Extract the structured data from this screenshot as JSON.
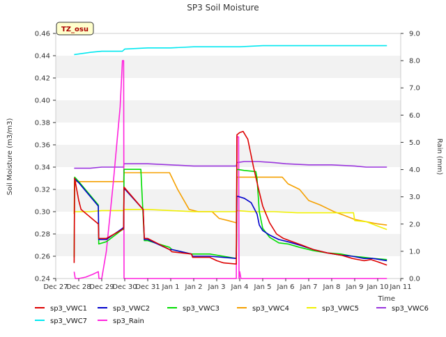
{
  "chart_data": {
    "type": "line",
    "title": "SP3 Soil Moisture",
    "xlabel": "Time",
    "ylabel": "Soil Moisture (m3/m3)",
    "y2label": "Rain (mm)",
    "badge": "TZ_osu",
    "xlim": [
      0,
      15
    ],
    "ylim": [
      0.24,
      0.46
    ],
    "y2lim": [
      0.0,
      9.0
    ],
    "grid": "horizontal bands",
    "legend_position": "bottom",
    "x_ticks": [
      {
        "v": 0,
        "label": "Dec 27"
      },
      {
        "v": 1,
        "label": "Dec 28"
      },
      {
        "v": 2,
        "label": "Dec 29"
      },
      {
        "v": 3,
        "label": "Dec 30"
      },
      {
        "v": 4,
        "label": "Dec 31"
      },
      {
        "v": 5,
        "label": "Jan 1"
      },
      {
        "v": 6,
        "label": "Jan 2"
      },
      {
        "v": 7,
        "label": "Jan 3"
      },
      {
        "v": 8,
        "label": "Jan 4"
      },
      {
        "v": 9,
        "label": "Jan 5"
      },
      {
        "v": 10,
        "label": "Jan 6"
      },
      {
        "v": 11,
        "label": "Jan 7"
      },
      {
        "v": 12,
        "label": "Jan 8"
      },
      {
        "v": 13,
        "label": "Jan 9"
      },
      {
        "v": 14,
        "label": "Jan 10"
      },
      {
        "v": 15,
        "label": "Jan 11"
      }
    ],
    "y_ticks": [
      {
        "v": 0.24,
        "label": "0.24"
      },
      {
        "v": 0.26,
        "label": "0.26"
      },
      {
        "v": 0.28,
        "label": "0.28"
      },
      {
        "v": 0.3,
        "label": "0.30"
      },
      {
        "v": 0.32,
        "label": "0.32"
      },
      {
        "v": 0.34,
        "label": "0.34"
      },
      {
        "v": 0.36,
        "label": "0.36"
      },
      {
        "v": 0.38,
        "label": "0.38"
      },
      {
        "v": 0.4,
        "label": "0.40"
      },
      {
        "v": 0.42,
        "label": "0.42"
      },
      {
        "v": 0.44,
        "label": "0.44"
      },
      {
        "v": 0.46,
        "label": "0.46"
      }
    ],
    "y2_ticks": [
      {
        "v": 0,
        "label": "0.0"
      },
      {
        "v": 1,
        "label": "1.0"
      },
      {
        "v": 2,
        "label": "2.0"
      },
      {
        "v": 3,
        "label": "3.0"
      },
      {
        "v": 4,
        "label": "4.0"
      },
      {
        "v": 5,
        "label": "5.0"
      },
      {
        "v": 6,
        "label": "6.0"
      },
      {
        "v": 7,
        "label": "7.0"
      },
      {
        "v": 8,
        "label": "8.0"
      },
      {
        "v": 9,
        "label": "9.0"
      }
    ],
    "series": [
      {
        "name": "sp3_VWC1",
        "color": "#dd0000",
        "axis": "left",
        "points": [
          [
            0.8,
            0.254
          ],
          [
            0.82,
            0.33
          ],
          [
            1.0,
            0.31
          ],
          [
            1.1,
            0.302
          ],
          [
            1.85,
            0.289
          ],
          [
            1.87,
            0.276
          ],
          [
            2.2,
            0.276
          ],
          [
            2.9,
            0.284
          ],
          [
            2.95,
            0.285
          ],
          [
            2.97,
            0.322
          ],
          [
            3.8,
            0.302
          ],
          [
            3.85,
            0.276
          ],
          [
            4.0,
            0.276
          ],
          [
            4.95,
            0.266
          ],
          [
            5.05,
            0.264
          ],
          [
            5.9,
            0.262
          ],
          [
            5.95,
            0.259
          ],
          [
            6.7,
            0.259
          ],
          [
            7.0,
            0.256
          ],
          [
            7.3,
            0.254
          ],
          [
            7.85,
            0.253
          ],
          [
            7.88,
            0.369
          ],
          [
            8.0,
            0.371
          ],
          [
            8.15,
            0.372
          ],
          [
            8.35,
            0.365
          ],
          [
            8.6,
            0.34
          ],
          [
            8.8,
            0.322
          ],
          [
            9.0,
            0.305
          ],
          [
            9.3,
            0.29
          ],
          [
            9.6,
            0.28
          ],
          [
            9.9,
            0.276
          ],
          [
            10.3,
            0.273
          ],
          [
            10.7,
            0.27
          ],
          [
            11.2,
            0.266
          ],
          [
            11.8,
            0.263
          ],
          [
            12.4,
            0.261
          ],
          [
            12.9,
            0.258
          ],
          [
            13.4,
            0.256
          ],
          [
            13.7,
            0.257
          ],
          [
            14.0,
            0.255
          ],
          [
            14.4,
            0.252
          ]
        ]
      },
      {
        "name": "sp3_VWC2",
        "color": "#0000cc",
        "axis": "left",
        "points": [
          [
            0.8,
            0.33
          ],
          [
            1.0,
            0.326
          ],
          [
            1.85,
            0.305
          ],
          [
            1.87,
            0.275
          ],
          [
            2.2,
            0.275
          ],
          [
            2.9,
            0.285
          ],
          [
            2.95,
            0.286
          ],
          [
            2.97,
            0.321
          ],
          [
            3.8,
            0.302
          ],
          [
            3.85,
            0.275
          ],
          [
            4.0,
            0.275
          ],
          [
            4.95,
            0.266
          ],
          [
            5.05,
            0.266
          ],
          [
            5.9,
            0.262
          ],
          [
            5.95,
            0.26
          ],
          [
            6.7,
            0.26
          ],
          [
            7.85,
            0.258
          ],
          [
            7.88,
            0.314
          ],
          [
            8.2,
            0.312
          ],
          [
            8.5,
            0.308
          ],
          [
            8.75,
            0.298
          ],
          [
            8.85,
            0.288
          ],
          [
            9.0,
            0.283
          ],
          [
            9.3,
            0.279
          ],
          [
            9.7,
            0.275
          ],
          [
            10.1,
            0.273
          ],
          [
            10.6,
            0.27
          ],
          [
            11.2,
            0.266
          ],
          [
            11.8,
            0.263
          ],
          [
            12.4,
            0.261
          ],
          [
            12.9,
            0.26
          ],
          [
            13.4,
            0.258
          ],
          [
            13.8,
            0.258
          ],
          [
            14.4,
            0.256
          ]
        ]
      },
      {
        "name": "sp3_VWC3",
        "color": "#00dd00",
        "axis": "left",
        "points": [
          [
            0.8,
            0.259
          ],
          [
            0.82,
            0.331
          ],
          [
            1.0,
            0.327
          ],
          [
            1.85,
            0.306
          ],
          [
            1.87,
            0.271
          ],
          [
            2.2,
            0.273
          ],
          [
            2.9,
            0.284
          ],
          [
            2.95,
            0.284
          ],
          [
            2.97,
            0.338
          ],
          [
            3.7,
            0.338
          ],
          [
            3.85,
            0.274
          ],
          [
            4.0,
            0.274
          ],
          [
            4.95,
            0.268
          ],
          [
            5.05,
            0.266
          ],
          [
            5.9,
            0.262
          ],
          [
            6.7,
            0.262
          ],
          [
            7.85,
            0.258
          ],
          [
            7.88,
            0.338
          ],
          [
            8.2,
            0.337
          ],
          [
            8.7,
            0.336
          ],
          [
            8.75,
            0.33
          ],
          [
            8.85,
            0.3
          ],
          [
            9.0,
            0.285
          ],
          [
            9.3,
            0.277
          ],
          [
            9.7,
            0.272
          ],
          [
            10.1,
            0.271
          ],
          [
            10.6,
            0.268
          ],
          [
            11.2,
            0.265
          ],
          [
            11.8,
            0.263
          ],
          [
            12.4,
            0.262
          ],
          [
            12.9,
            0.26
          ],
          [
            13.4,
            0.259
          ],
          [
            13.8,
            0.258
          ],
          [
            14.4,
            0.257
          ]
        ]
      },
      {
        "name": "sp3_VWC4",
        "color": "#f5a000",
        "axis": "left",
        "points": [
          [
            0.8,
            0.298
          ],
          [
            0.82,
            0.327
          ],
          [
            1.5,
            0.327
          ],
          [
            2.0,
            0.327
          ],
          [
            2.9,
            0.327
          ],
          [
            2.95,
            0.327
          ],
          [
            2.97,
            0.335
          ],
          [
            3.5,
            0.335
          ],
          [
            4.0,
            0.335
          ],
          [
            4.95,
            0.335
          ],
          [
            5.3,
            0.32
          ],
          [
            5.8,
            0.302
          ],
          [
            6.2,
            0.3
          ],
          [
            6.8,
            0.3
          ],
          [
            7.1,
            0.294
          ],
          [
            7.5,
            0.292
          ],
          [
            7.85,
            0.29
          ],
          [
            7.88,
            0.331
          ],
          [
            8.5,
            0.331
          ],
          [
            9.5,
            0.331
          ],
          [
            9.85,
            0.331
          ],
          [
            10.1,
            0.325
          ],
          [
            10.6,
            0.32
          ],
          [
            11.0,
            0.31
          ],
          [
            11.5,
            0.306
          ],
          [
            11.8,
            0.303
          ],
          [
            12.1,
            0.3
          ],
          [
            12.5,
            0.297
          ],
          [
            13.0,
            0.293
          ],
          [
            13.5,
            0.291
          ],
          [
            14.0,
            0.289
          ],
          [
            14.4,
            0.288
          ]
        ]
      },
      {
        "name": "sp3_VWC5",
        "color": "#f0f000",
        "axis": "left",
        "points": [
          [
            0.8,
            0.3
          ],
          [
            1.5,
            0.3
          ],
          [
            2.0,
            0.301
          ],
          [
            2.95,
            0.301
          ],
          [
            2.97,
            0.302
          ],
          [
            3.7,
            0.302
          ],
          [
            4.0,
            0.302
          ],
          [
            5.0,
            0.301
          ],
          [
            6.0,
            0.3
          ],
          [
            7.0,
            0.3
          ],
          [
            7.85,
            0.3
          ],
          [
            7.88,
            0.301
          ],
          [
            8.5,
            0.3
          ],
          [
            9.5,
            0.3
          ],
          [
            10.5,
            0.299
          ],
          [
            11.5,
            0.299
          ],
          [
            12.5,
            0.299
          ],
          [
            12.95,
            0.299
          ],
          [
            13.0,
            0.292
          ],
          [
            13.5,
            0.291
          ],
          [
            14.0,
            0.287
          ],
          [
            14.4,
            0.284
          ]
        ]
      },
      {
        "name": "sp3_VWC6",
        "color": "#9933dd",
        "axis": "left",
        "points": [
          [
            0.8,
            0.339
          ],
          [
            1.5,
            0.339
          ],
          [
            2.0,
            0.34
          ],
          [
            2.9,
            0.34
          ],
          [
            2.95,
            0.34
          ],
          [
            2.97,
            0.343
          ],
          [
            4.0,
            0.343
          ],
          [
            5.0,
            0.342
          ],
          [
            6.0,
            0.341
          ],
          [
            7.0,
            0.341
          ],
          [
            7.85,
            0.341
          ],
          [
            7.88,
            0.344
          ],
          [
            8.2,
            0.345
          ],
          [
            8.8,
            0.345
          ],
          [
            9.5,
            0.344
          ],
          [
            10.0,
            0.343
          ],
          [
            11.0,
            0.342
          ],
          [
            12.0,
            0.342
          ],
          [
            13.0,
            0.341
          ],
          [
            13.5,
            0.34
          ],
          [
            14.4,
            0.34
          ]
        ]
      },
      {
        "name": "sp3_VWC7",
        "color": "#00e8f0",
        "axis": "left",
        "points": [
          [
            0.8,
            0.441
          ],
          [
            1.5,
            0.443
          ],
          [
            2.0,
            0.444
          ],
          [
            2.5,
            0.444
          ],
          [
            2.9,
            0.444
          ],
          [
            3.0,
            0.446
          ],
          [
            4.0,
            0.447
          ],
          [
            5.0,
            0.447
          ],
          [
            6.0,
            0.448
          ],
          [
            7.0,
            0.448
          ],
          [
            7.85,
            0.448
          ],
          [
            8.0,
            0.448
          ],
          [
            9.0,
            0.449
          ],
          [
            10.0,
            0.449
          ],
          [
            11.0,
            0.449
          ],
          [
            12.0,
            0.449
          ],
          [
            13.0,
            0.449
          ],
          [
            13.5,
            0.449
          ],
          [
            14.4,
            0.449
          ]
        ]
      },
      {
        "name": "sp3_Rain",
        "color": "#ff22dd",
        "axis": "right",
        "points": [
          [
            0.8,
            0.25
          ],
          [
            0.85,
            0.0
          ],
          [
            1.0,
            0.0
          ],
          [
            1.3,
            0.05
          ],
          [
            1.6,
            0.15
          ],
          [
            1.85,
            0.25
          ],
          [
            1.88,
            0.0
          ],
          [
            2.0,
            0.0
          ],
          [
            2.2,
            1.0
          ],
          [
            2.5,
            3.5
          ],
          [
            2.8,
            6.3
          ],
          [
            2.9,
            8.0
          ],
          [
            2.95,
            8.0
          ],
          [
            2.97,
            0.0
          ],
          [
            4.0,
            0.0
          ],
          [
            5.0,
            0.0
          ],
          [
            6.0,
            0.0
          ],
          [
            7.0,
            0.0
          ],
          [
            7.85,
            0.0
          ],
          [
            7.88,
            5.2
          ],
          [
            7.95,
            5.2
          ],
          [
            7.97,
            0.0
          ],
          [
            8.0,
            0.25
          ],
          [
            8.05,
            0.0
          ],
          [
            9.0,
            0.0
          ],
          [
            10.0,
            0.0
          ],
          [
            11.0,
            0.0
          ],
          [
            12.0,
            0.0
          ],
          [
            13.0,
            0.0
          ],
          [
            14.0,
            0.0
          ],
          [
            14.4,
            0.0
          ]
        ]
      }
    ]
  }
}
